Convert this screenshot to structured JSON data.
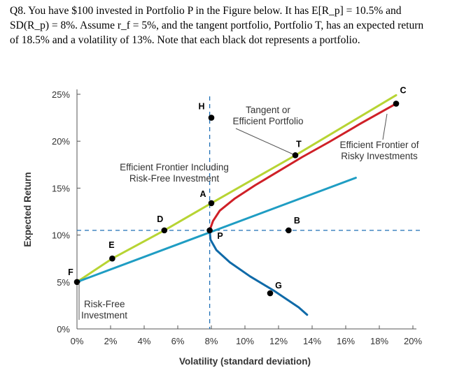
{
  "question": {
    "line1": "Q8. You have $100 invested in Portfolio P in the Figure below. It has E[R_p] = 10.5% and",
    "line2": "SD(R_p) = 8%. Assume r_f = 5%, and the tangent portfolio, Portfolio T, has an expected return",
    "line3": "of 18.5% and a volatility of 13%. Note that each black dot represents a portfolio."
  },
  "chart_data": {
    "type": "line",
    "xlabel": "Volatility (standard deviation)",
    "ylabel": "Expected Return",
    "xlim": [
      0,
      20
    ],
    "ylim": [
      0,
      25
    ],
    "xticks": [
      "0%",
      "2%",
      "4%",
      "6%",
      "8%",
      "10%",
      "12%",
      "14%",
      "16%",
      "18%",
      "20%"
    ],
    "yticks": [
      "0%",
      "5%",
      "10%",
      "15%",
      "20%",
      "25%"
    ],
    "series": [
      {
        "name": "Efficient Frontier Including Risk-Free Investment",
        "color": "#b7d433",
        "points": [
          [
            0,
            5
          ],
          [
            2.1,
            7.5
          ],
          [
            5.2,
            10.5
          ],
          [
            8,
            13.4
          ],
          [
            13,
            18.5
          ],
          [
            19,
            24.9
          ]
        ]
      },
      {
        "name": "",
        "color": "#1f9dc3",
        "points": [
          [
            0,
            5
          ],
          [
            16.6,
            16.1
          ]
        ]
      },
      {
        "name": "Efficient Frontier of Risky Investments",
        "color": "#cf2027",
        "points": [
          [
            7.9,
            10.5
          ],
          [
            8.1,
            11.5
          ],
          [
            8.5,
            12.6
          ],
          [
            9.4,
            13.9
          ],
          [
            10.6,
            15.3
          ],
          [
            12,
            16.8
          ],
          [
            13.4,
            18.3
          ],
          [
            15,
            19.9
          ],
          [
            16.9,
            21.9
          ],
          [
            19,
            24.0
          ]
        ]
      },
      {
        "name": "",
        "color": "#0f6aa8",
        "points": [
          [
            7.9,
            10.5
          ],
          [
            7.95,
            9.5
          ],
          [
            8.3,
            8.4
          ],
          [
            9.1,
            7.1
          ],
          [
            10.3,
            5.6
          ],
          [
            11.7,
            4.1
          ],
          [
            13.2,
            2.3
          ],
          [
            13.7,
            1.5
          ]
        ]
      }
    ],
    "reference_lines": [
      {
        "orientation": "horizontal",
        "value": 10.5,
        "color": "#1f6fb5"
      },
      {
        "orientation": "vertical",
        "value": 7.9,
        "color": "#1f6fb5"
      }
    ],
    "portfolios": [
      {
        "label": "F",
        "x": 0,
        "y": 5
      },
      {
        "label": "E",
        "x": 2.1,
        "y": 7.5
      },
      {
        "label": "D",
        "x": 5.2,
        "y": 10.5
      },
      {
        "label": "P",
        "x": 7.9,
        "y": 10.5
      },
      {
        "label": "A",
        "x": 8,
        "y": 13.4
      },
      {
        "label": "H",
        "x": 8,
        "y": 22.5
      },
      {
        "label": "T",
        "x": 13,
        "y": 18.5
      },
      {
        "label": "B",
        "x": 12.6,
        "y": 10.5
      },
      {
        "label": "G",
        "x": 11.5,
        "y": 3.8
      },
      {
        "label": "C",
        "x": 19,
        "y": 24.0
      }
    ],
    "annotations": {
      "tangent": [
        "Tangent or",
        "Efficient Portfolio"
      ],
      "frontier_incl": [
        "Efficient Frontier Including",
        "Risk-Free Investment"
      ],
      "frontier_risky": [
        "Efficient Frontier of",
        "Risky Investments"
      ],
      "risk_free": [
        "Risk-Free",
        "Investment"
      ]
    }
  }
}
